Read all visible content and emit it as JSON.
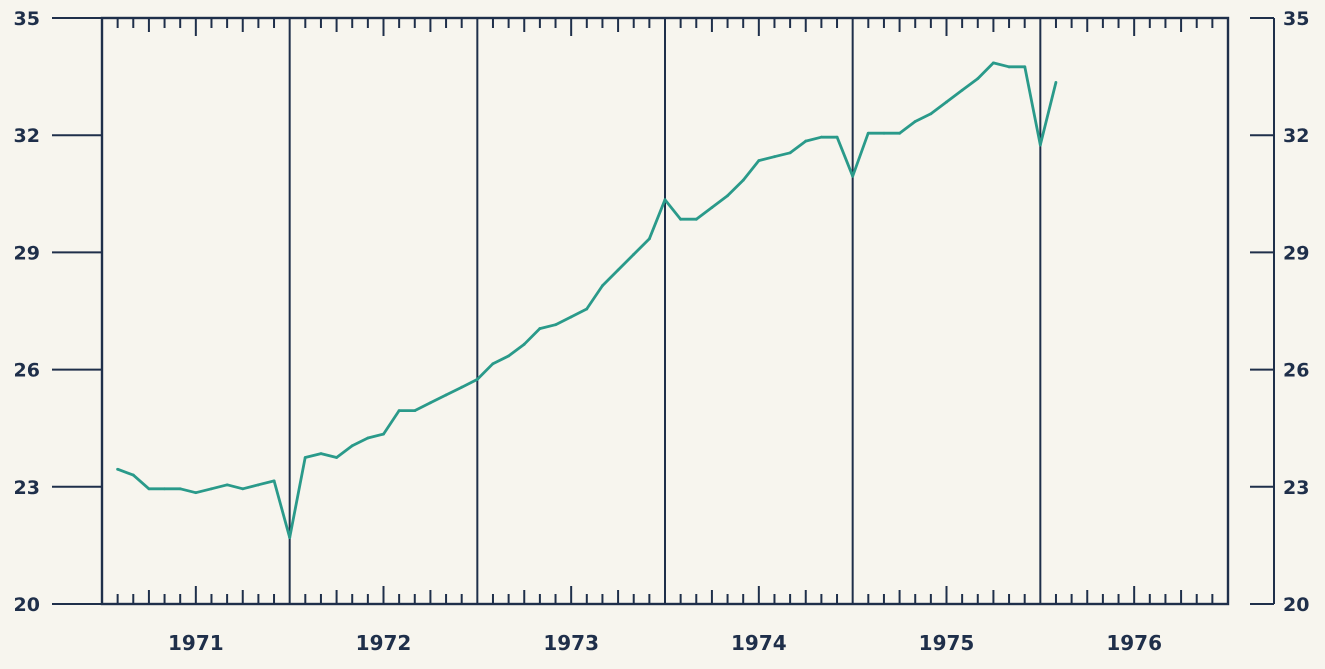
{
  "chart_data": {
    "type": "line",
    "title": "",
    "xlabel": "",
    "ylabel": "",
    "x_tick_labels": [
      "1971",
      "1972",
      "1973",
      "1974",
      "1975",
      "1976"
    ],
    "x_range": [
      1971.0,
      1977.0
    ],
    "ylim": [
      20,
      35
    ],
    "y_ticks": [
      20,
      23,
      26,
      29,
      32,
      35
    ],
    "y_tick_labels_left": [
      "20",
      "23",
      "26",
      "29",
      "32",
      "35"
    ],
    "y_tick_labels_right": [
      "20",
      "23",
      "26",
      "29",
      "32",
      "35"
    ],
    "grid": "vertical year dividers only",
    "minor_ticks": "monthly tick marks on top and bottom frame",
    "legend": "none",
    "colors": {
      "series_line": "#2a9a8a",
      "axes": "#1f2f4a",
      "background": "#f7f5ee"
    },
    "series": [
      {
        "x": [
          1971.083,
          1971.167,
          1971.25,
          1971.333,
          1971.417,
          1971.5,
          1971.583,
          1971.667,
          1971.75,
          1971.833,
          1971.917,
          1972.0,
          1972.083,
          1972.167,
          1972.25,
          1972.333,
          1972.417,
          1972.5,
          1972.583,
          1972.667,
          1972.75,
          1972.833,
          1972.917,
          1973.0,
          1973.083,
          1973.167,
          1973.25,
          1973.333,
          1973.417,
          1973.5,
          1973.583,
          1973.667,
          1973.75,
          1973.833,
          1973.917,
          1974.0,
          1974.083,
          1974.167,
          1974.25,
          1974.333,
          1974.417,
          1974.5,
          1974.583,
          1974.667,
          1974.75,
          1974.833,
          1974.917,
          1975.0,
          1975.083,
          1975.167,
          1975.25,
          1975.333,
          1975.417,
          1975.5,
          1975.583,
          1975.667,
          1975.75,
          1975.833,
          1975.917,
          1976.0,
          1976.083
        ],
        "values": [
          23.45,
          23.3,
          22.95,
          22.95,
          22.95,
          22.85,
          22.95,
          23.05,
          22.95,
          23.05,
          23.15,
          21.7,
          23.75,
          23.85,
          23.75,
          24.05,
          24.25,
          24.35,
          24.95,
          24.95,
          25.15,
          25.35,
          25.55,
          25.75,
          26.15,
          26.35,
          26.65,
          27.05,
          27.15,
          27.35,
          27.55,
          28.15,
          28.55,
          28.95,
          29.35,
          30.35,
          29.85,
          29.85,
          30.15,
          30.45,
          30.85,
          31.35,
          31.45,
          31.55,
          31.85,
          31.95,
          31.95,
          30.95,
          32.05,
          32.05,
          32.05,
          32.35,
          32.55,
          32.85,
          33.15,
          33.45,
          33.85,
          33.75,
          33.75,
          31.75,
          33.35
        ]
      }
    ]
  }
}
